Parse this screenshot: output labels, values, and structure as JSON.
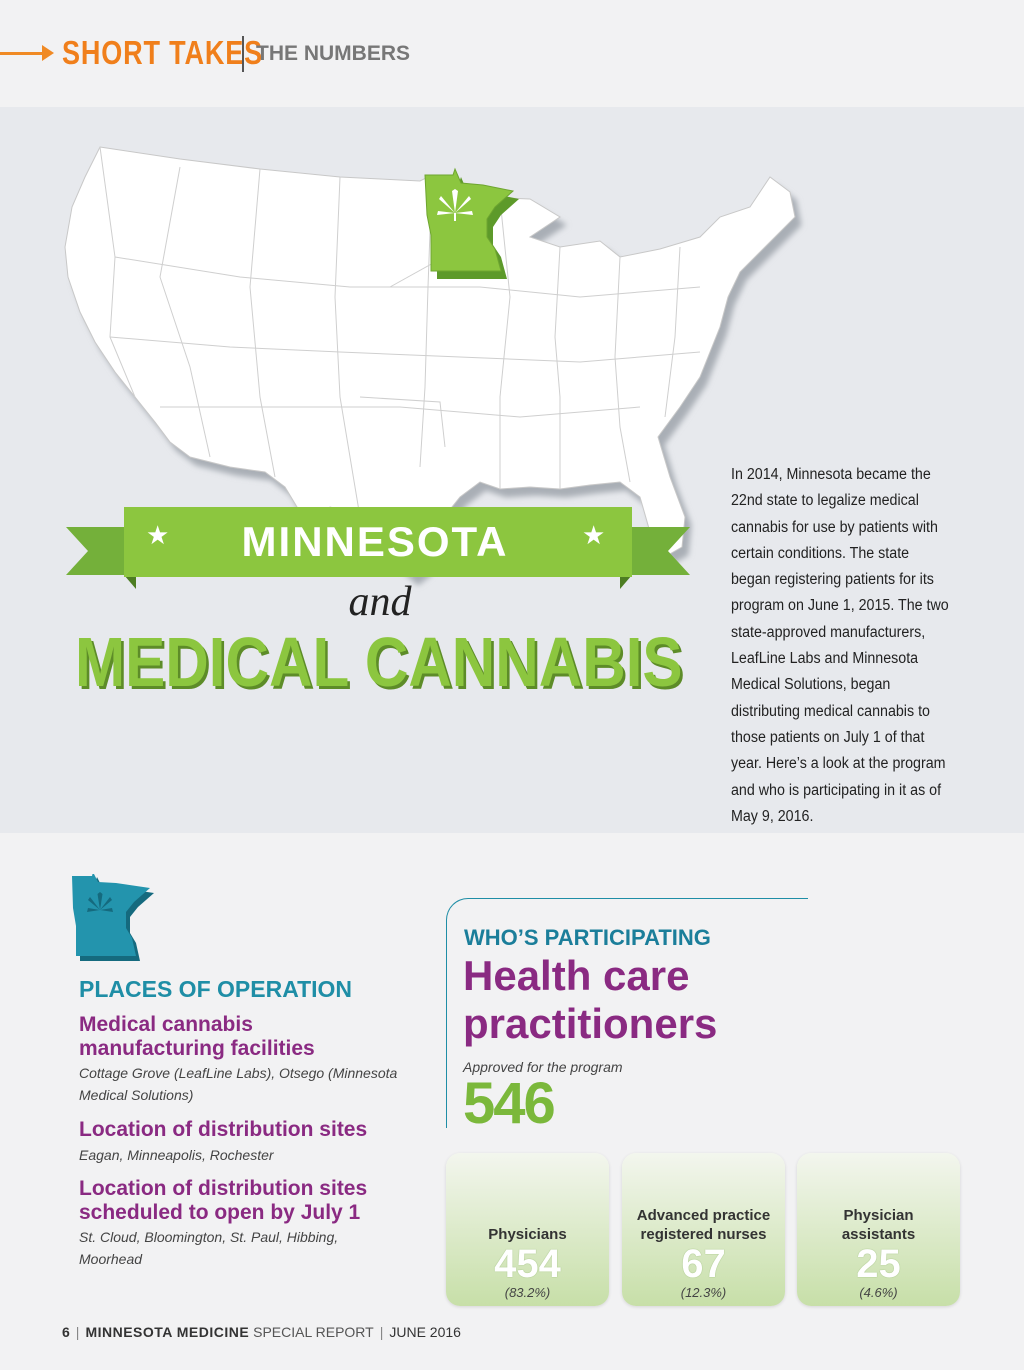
{
  "header": {
    "section": "SHORT TAKES",
    "subsection": "THE NUMBERS"
  },
  "intro": "In 2014, Minnesota became the 22nd state to legalize medical cannabis for use by patients with certain conditions. The state began registering patients for its program on June 1, 2015. The two state-approved manufacturers, LeafLine Labs and Minnesota Medical Solutions, began distributing medical cannabis to those patients on July 1 of that year. Here’s a look at the program and who is participating in it as of May 9, 2016.",
  "title": {
    "banner": "MINNESOTA",
    "and": "and",
    "main": "MEDICAL CANNABIS"
  },
  "places": {
    "heading": "PLACES OF OPERATION",
    "items": [
      {
        "heading": "Medical cannabis manufacturing facilities",
        "detail": "Cottage Grove (LeafLine Labs), Otsego (Minnesota Medical Solutions)"
      },
      {
        "heading": "Location of distribution sites",
        "detail": "Eagan, Minneapolis, Rochester"
      },
      {
        "heading": "Location of distribution sites scheduled to open by July 1",
        "detail": "St. Cloud, Bloomington, St. Paul, Hibbing, Moorhead"
      }
    ]
  },
  "participating": {
    "heading": "WHO’S PARTICIPATING",
    "title": "Health care practitioners",
    "approved_label": "Approved for the program",
    "total": "546",
    "cards": [
      {
        "label": "Physicians",
        "value": "454",
        "pct": "(83.2%)"
      },
      {
        "label": "Advanced practice registered nurses",
        "value": "67",
        "pct": "(12.3%)"
      },
      {
        "label": "Physician assistants",
        "value": "25",
        "pct": "(4.6%)"
      }
    ]
  },
  "footer": {
    "page": "6",
    "publication": "MINNESOTA MEDICINE",
    "report": "SPECIAL REPORT",
    "date": "JUNE 2016"
  },
  "colors": {
    "accent_orange": "#f07f1b",
    "green": "#8cc63f",
    "purple": "#8a2a82",
    "teal": "#1f8ea6"
  }
}
